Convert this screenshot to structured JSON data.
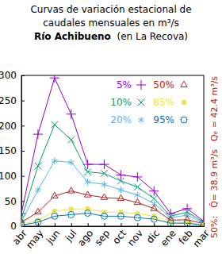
{
  "chart_data": {
    "type": "line",
    "title": [
      "Curvas de variación estacional de",
      "caudales mensuales en m³/s"
    ],
    "subtitle": [
      "Río Achibueno",
      "(en La Recova)"
    ],
    "annotations": [
      "50%:",
      "Q̄= 38.9 m³/s",
      "Qₑ = 42.4 m³/s"
    ],
    "categories": [
      "abr",
      "may",
      "jun",
      "jul",
      "ago",
      "sep",
      "oct",
      "nov",
      "dic",
      "ene",
      "feb",
      "mar"
    ],
    "ylim": [
      0,
      300
    ],
    "yticks": [
      0,
      50,
      100,
      150,
      200,
      250,
      300
    ],
    "grid": false,
    "legend": "top-right",
    "series": [
      {
        "name": "5%",
        "color": "#9400d3",
        "marker": "plus",
        "values": [
          25,
          183,
          295,
          223,
          123,
          123,
          102,
          98,
          70,
          25,
          35,
          10
        ]
      },
      {
        "name": "10%",
        "color": "#009e73",
        "marker": "cross",
        "values": [
          15,
          120,
          202,
          172,
          108,
          105,
          90,
          78,
          55,
          20,
          28,
          8
        ]
      },
      {
        "name": "20%",
        "color": "#56b4e9",
        "marker": "asterisk",
        "values": [
          10,
          72,
          130,
          127,
          88,
          83,
          72,
          62,
          45,
          17,
          22,
          6
        ]
      },
      {
        "name": "50%",
        "color": "#b22222",
        "marker": "triangle",
        "values": [
          8,
          28,
          60,
          70,
          62,
          57,
          55,
          47,
          35,
          12,
          13,
          5
        ]
      },
      {
        "name": "85%",
        "color": "#f0e442",
        "marker": "square",
        "values": [
          3,
          12,
          30,
          34,
          35,
          28,
          28,
          25,
          20,
          8,
          8,
          3
        ]
      },
      {
        "name": "95%",
        "color": "#0072b2",
        "marker": "circle",
        "values": [
          2,
          8,
          20,
          23,
          26,
          20,
          20,
          17,
          14,
          6,
          6,
          2
        ]
      }
    ]
  }
}
